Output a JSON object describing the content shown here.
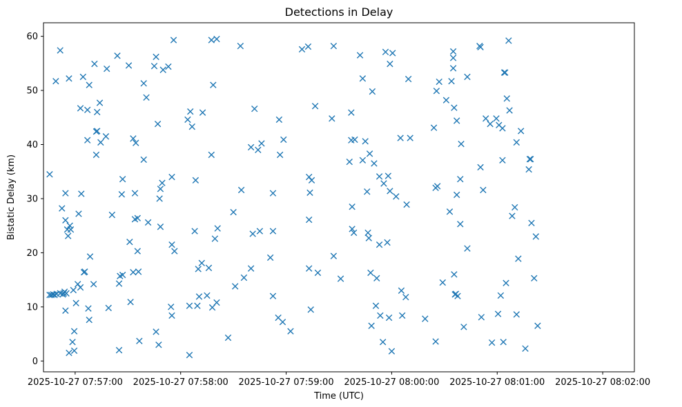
{
  "chart_data": {
    "type": "scatter",
    "title": "Detections in Delay",
    "xlabel": "Time (UTC)",
    "ylabel": "Bistatic Delay (km)",
    "marker": "x",
    "color": "#1f77b4",
    "xlim_seconds": [
      -18,
      318
    ],
    "ylim": [
      -2,
      62.5
    ],
    "x_ticks": [
      {
        "t": 0,
        "label": "2025-10-27 07:57:00"
      },
      {
        "t": 60,
        "label": "2025-10-27 07:58:00"
      },
      {
        "t": 120,
        "label": "2025-10-27 07:59:00"
      },
      {
        "t": 180,
        "label": "2025-10-27 08:00:00"
      },
      {
        "t": 240,
        "label": "2025-10-27 08:01:00"
      },
      {
        "t": 300,
        "label": "2025-10-27 08:02:00"
      }
    ],
    "y_ticks": [
      0,
      10,
      20,
      30,
      40,
      50,
      60
    ],
    "x_origin_label": "2025-10-27 07:57:00",
    "points": [
      [
        -14.5,
        34.5
      ],
      [
        -14.5,
        12.2
      ],
      [
        -13.5,
        12.2
      ],
      [
        -12.5,
        12.3
      ],
      [
        -11.7,
        12.2
      ],
      [
        -10.5,
        12.4
      ],
      [
        -8.5,
        12.5
      ],
      [
        -7,
        12.3
      ],
      [
        -6.5,
        12.5
      ],
      [
        -6,
        12.8
      ],
      [
        -5,
        12.5
      ],
      [
        -5.5,
        9.3
      ],
      [
        -11,
        51.7
      ],
      [
        -8.5,
        57.4
      ],
      [
        -3.5,
        52.2
      ],
      [
        -5.5,
        31
      ],
      [
        -7.5,
        28.2
      ],
      [
        -5.5,
        26
      ],
      [
        -4.5,
        24.3
      ],
      [
        -4,
        23.1
      ],
      [
        -3,
        25
      ],
      [
        -2.5,
        24.3
      ],
      [
        -3.5,
        1.5
      ],
      [
        -1,
        13.1
      ],
      [
        0.5,
        10.7
      ],
      [
        -1.5,
        3.5
      ],
      [
        -0.5,
        5.5
      ],
      [
        -0.5,
        1.9
      ],
      [
        1.5,
        14.2
      ],
      [
        2,
        27.2
      ],
      [
        3,
        46.7
      ],
      [
        3,
        13.6
      ],
      [
        3.5,
        30.9
      ],
      [
        4.5,
        52.5
      ],
      [
        5,
        16.4
      ],
      [
        5.5,
        16.5
      ],
      [
        7,
        46.4
      ],
      [
        7,
        40.8
      ],
      [
        7.5,
        9.7
      ],
      [
        8,
        7.6
      ],
      [
        8,
        51
      ],
      [
        8.5,
        19.3
      ],
      [
        10.5,
        14.2
      ],
      [
        11,
        54.9
      ],
      [
        12,
        38.1
      ],
      [
        12,
        42.4
      ],
      [
        12.5,
        42.5
      ],
      [
        12.5,
        46
      ],
      [
        14,
        47.7
      ],
      [
        14.5,
        40.4
      ],
      [
        17.5,
        41.5
      ],
      [
        18,
        54
      ],
      [
        19,
        9.8
      ],
      [
        21,
        27
      ],
      [
        24,
        56.4
      ],
      [
        25,
        2
      ],
      [
        25,
        14.3
      ],
      [
        25.5,
        15.7
      ],
      [
        26.5,
        30.8
      ],
      [
        27,
        33.6
      ],
      [
        27,
        15.9
      ],
      [
        30.5,
        54.6
      ],
      [
        31,
        22
      ],
      [
        31.5,
        10.9
      ],
      [
        33,
        41.1
      ],
      [
        33,
        16.4
      ],
      [
        34,
        26.2
      ],
      [
        34,
        31
      ],
      [
        34.5,
        40.3
      ],
      [
        35.5,
        20.3
      ],
      [
        35.5,
        26.4
      ],
      [
        36,
        16.5
      ],
      [
        36.5,
        3.7
      ],
      [
        39,
        51.3
      ],
      [
        39,
        37.2
      ],
      [
        40.5,
        48.7
      ],
      [
        41.5,
        25.6
      ],
      [
        45,
        54.5
      ],
      [
        46,
        56.2
      ],
      [
        46,
        5.4
      ],
      [
        47,
        43.8
      ],
      [
        47.5,
        3
      ],
      [
        48,
        30
      ],
      [
        48.5,
        24.8
      ],
      [
        48.5,
        31.8
      ],
      [
        49.5,
        32.9
      ],
      [
        50,
        53.8
      ],
      [
        53,
        54.4
      ],
      [
        54.5,
        10
      ],
      [
        55,
        21.5
      ],
      [
        55,
        8.4
      ],
      [
        55,
        34
      ],
      [
        56,
        59.3
      ],
      [
        56.5,
        20.3
      ],
      [
        64,
        44.6
      ],
      [
        65,
        1.1
      ],
      [
        65,
        10.2
      ],
      [
        65.5,
        46.1
      ],
      [
        66.5,
        43.3
      ],
      [
        68,
        24
      ],
      [
        68.5,
        33.4
      ],
      [
        69.5,
        10.2
      ],
      [
        70,
        17
      ],
      [
        70.5,
        11.9
      ],
      [
        72,
        18.1
      ],
      [
        72.5,
        45.9
      ],
      [
        75,
        12.1
      ],
      [
        76,
        17.2
      ],
      [
        77.5,
        38.1
      ],
      [
        77.5,
        59.3
      ],
      [
        78,
        9.9
      ],
      [
        78.5,
        51
      ],
      [
        79.5,
        22.6
      ],
      [
        80.5,
        10.8
      ],
      [
        80.5,
        59.5
      ],
      [
        81,
        24.5
      ],
      [
        87,
        4.3
      ],
      [
        90,
        27.5
      ],
      [
        91,
        13.8
      ],
      [
        94,
        58.2
      ],
      [
        94.5,
        31.6
      ],
      [
        96,
        15.4
      ],
      [
        100,
        17.1
      ],
      [
        100,
        39.5
      ],
      [
        101,
        23.5
      ],
      [
        102,
        46.6
      ],
      [
        104,
        39
      ],
      [
        105,
        24
      ],
      [
        106,
        40.2
      ],
      [
        111,
        19.1
      ],
      [
        112.5,
        31
      ],
      [
        112.5,
        24
      ],
      [
        112.5,
        12
      ],
      [
        115.5,
        8
      ],
      [
        116,
        44.6
      ],
      [
        116.5,
        38.1
      ],
      [
        118,
        7.2
      ],
      [
        118.5,
        40.9
      ],
      [
        122.5,
        5.5
      ],
      [
        129,
        57.6
      ],
      [
        132.5,
        58.1
      ],
      [
        133,
        26.1
      ],
      [
        133,
        17.1
      ],
      [
        133,
        34
      ],
      [
        133.5,
        31.1
      ],
      [
        134,
        9.5
      ],
      [
        134.5,
        33.4
      ],
      [
        136.5,
        47.1
      ],
      [
        138,
        16.3
      ],
      [
        146,
        44.8
      ],
      [
        147,
        19.4
      ],
      [
        147,
        58.2
      ],
      [
        151,
        15.2
      ],
      [
        156,
        36.8
      ],
      [
        157,
        45.9
      ],
      [
        157,
        40.8
      ],
      [
        157.5,
        28.5
      ],
      [
        157.5,
        24.4
      ],
      [
        159,
        40.9
      ],
      [
        158.5,
        23.7
      ],
      [
        162,
        56.5
      ],
      [
        163.5,
        52.2
      ],
      [
        163.5,
        37.1
      ],
      [
        165,
        40.6
      ],
      [
        166,
        31.3
      ],
      [
        166.5,
        23.7
      ],
      [
        167,
        22.7
      ],
      [
        167.5,
        38.3
      ],
      [
        168,
        16.3
      ],
      [
        168.5,
        6.5
      ],
      [
        169,
        49.8
      ],
      [
        170,
        36.5
      ],
      [
        171,
        10.2
      ],
      [
        171.5,
        15.3
      ],
      [
        173,
        34.1
      ],
      [
        173,
        21.5
      ],
      [
        173.5,
        8.4
      ],
      [
        175,
        3.5
      ],
      [
        175.5,
        32.8
      ],
      [
        176.5,
        57.1
      ],
      [
        177.5,
        21.9
      ],
      [
        178,
        34.2
      ],
      [
        178.5,
        8
      ],
      [
        179,
        54.9
      ],
      [
        179,
        31.4
      ],
      [
        180,
        1.8
      ],
      [
        180.5,
        56.9
      ],
      [
        182.5,
        30.4
      ],
      [
        185,
        41.2
      ],
      [
        185.5,
        13
      ],
      [
        186,
        8.4
      ],
      [
        188,
        11.8
      ],
      [
        188.5,
        28.9
      ],
      [
        189.5,
        52.1
      ],
      [
        190.5,
        41.2
      ],
      [
        199,
        7.8
      ],
      [
        204,
        43.1
      ],
      [
        205,
        3.6
      ],
      [
        205,
        32
      ],
      [
        205.5,
        49.9
      ],
      [
        206,
        32.3
      ],
      [
        207,
        51.6
      ],
      [
        209,
        14.5
      ],
      [
        211,
        48.2
      ],
      [
        213,
        27.6
      ],
      [
        214,
        51.7
      ],
      [
        215,
        57.2
      ],
      [
        215,
        56
      ],
      [
        215,
        54.1
      ],
      [
        215.5,
        46.8
      ],
      [
        215.5,
        16
      ],
      [
        216,
        12.3
      ],
      [
        216.5,
        12.4
      ],
      [
        217,
        30.7
      ],
      [
        217,
        44.4
      ],
      [
        217.5,
        12
      ],
      [
        219,
        25.3
      ],
      [
        219,
        33.6
      ],
      [
        219.5,
        40.1
      ],
      [
        221,
        6.3
      ],
      [
        223,
        52.5
      ],
      [
        223,
        20.8
      ],
      [
        230,
        58.2
      ],
      [
        230.5,
        58
      ],
      [
        230.5,
        35.8
      ],
      [
        231,
        8.1
      ],
      [
        232,
        31.6
      ],
      [
        233.5,
        44.8
      ],
      [
        236,
        43.8
      ],
      [
        237,
        3.4
      ],
      [
        239.5,
        44.8
      ],
      [
        240.5,
        8.7
      ],
      [
        241,
        43.6
      ],
      [
        242,
        12.1
      ],
      [
        243,
        37.1
      ],
      [
        243,
        43
      ],
      [
        243.5,
        3.5
      ],
      [
        244,
        53.3
      ],
      [
        244.5,
        53.3
      ],
      [
        245,
        14.4
      ],
      [
        245.5,
        48.5
      ],
      [
        246.5,
        59.2
      ],
      [
        247,
        46.3
      ],
      [
        248.5,
        26.8
      ],
      [
        250,
        28.4
      ],
      [
        251,
        40.4
      ],
      [
        251,
        8.6
      ],
      [
        252,
        18.9
      ],
      [
        253.5,
        42.5
      ],
      [
        256,
        2.3
      ],
      [
        258,
        35.4
      ],
      [
        258.5,
        37.3
      ],
      [
        259,
        37.3
      ],
      [
        259.5,
        25.5
      ],
      [
        261,
        15.3
      ],
      [
        262,
        23
      ],
      [
        263,
        6.5
      ]
    ]
  }
}
